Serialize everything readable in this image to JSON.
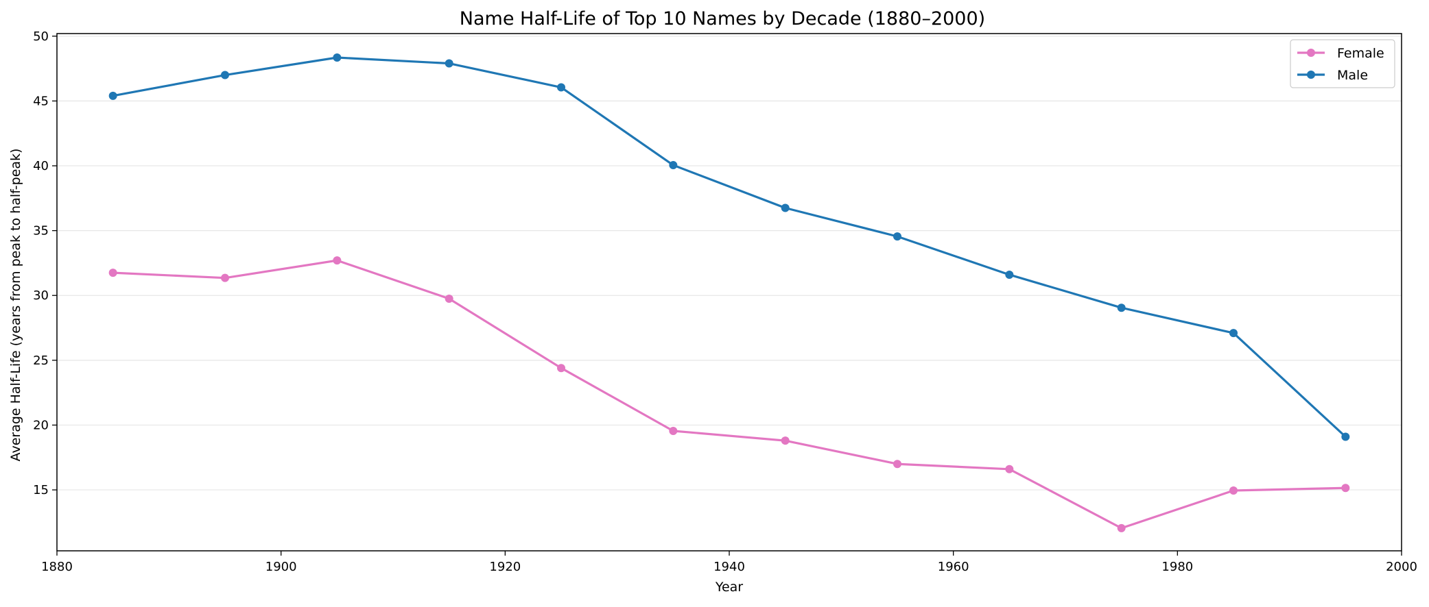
{
  "chart_data": {
    "type": "line",
    "title": "Name Half-Life of Top 10 Names by Decade (1880–2000)",
    "xlabel": "Year",
    "ylabel": "Average Half-Life (years from peak to half-peak)",
    "xlim": [
      1880,
      2000
    ],
    "ylim": [
      10.3,
      50.2
    ],
    "x_ticks": [
      1880,
      1900,
      1920,
      1940,
      1960,
      1980,
      2000
    ],
    "y_ticks": [
      15,
      20,
      25,
      30,
      35,
      40,
      45,
      50
    ],
    "grid": "horizontal",
    "legend_position": "top-right",
    "x": [
      1885,
      1895,
      1905,
      1915,
      1925,
      1935,
      1945,
      1955,
      1965,
      1975,
      1985,
      1995
    ],
    "series": [
      {
        "name": "Female",
        "color": "#e377c2",
        "values": [
          31.75,
          31.35,
          32.7,
          29.75,
          24.4,
          19.55,
          18.8,
          17.0,
          16.6,
          12.05,
          14.95,
          15.15
        ]
      },
      {
        "name": "Male",
        "color": "#1f77b4",
        "values": [
          45.4,
          47.0,
          48.35,
          47.9,
          46.05,
          40.05,
          36.75,
          34.55,
          31.6,
          29.05,
          27.1,
          19.1
        ]
      }
    ]
  }
}
